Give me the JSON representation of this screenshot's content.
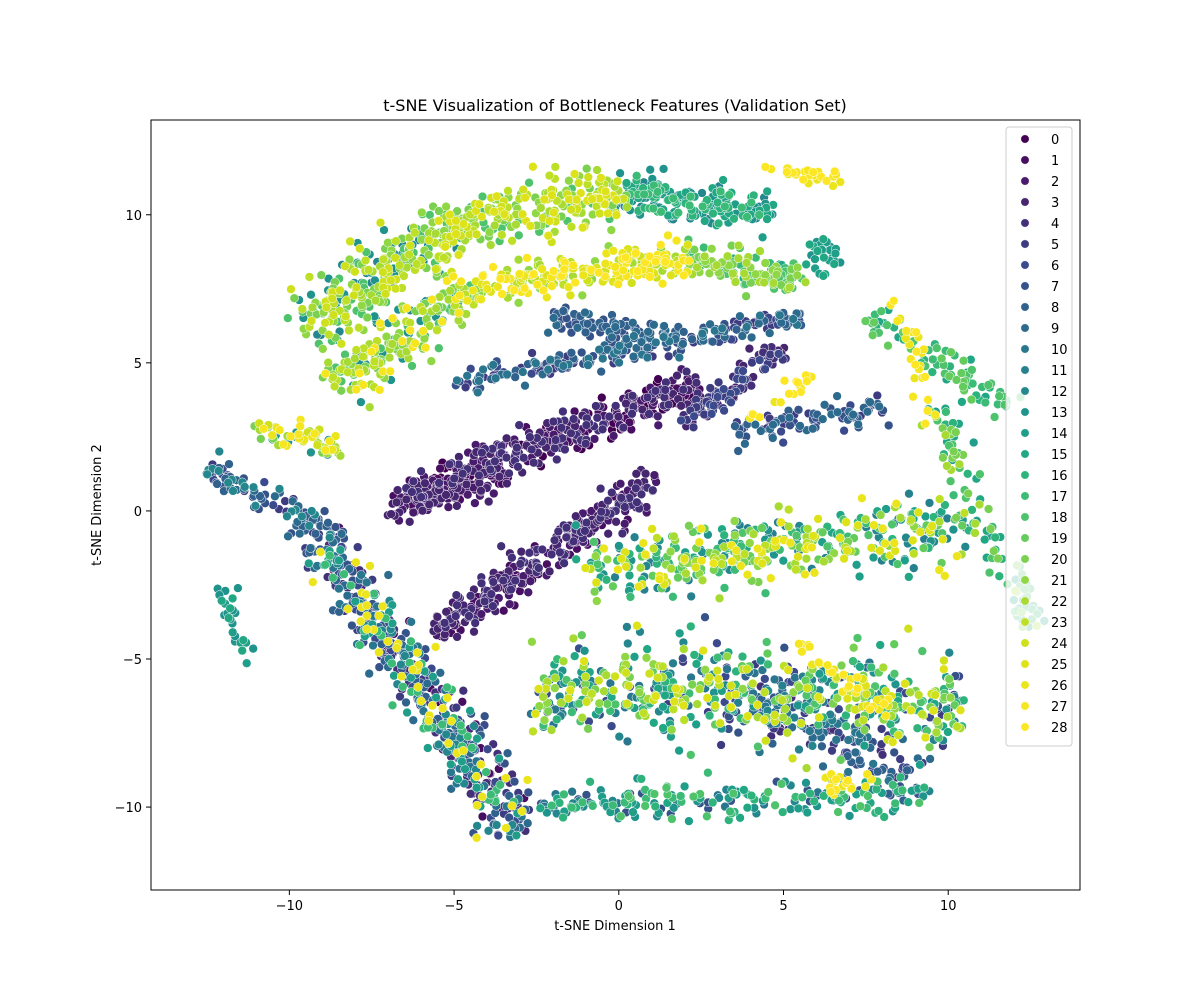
{
  "chart_data": {
    "type": "scatter",
    "title": "t-SNE Visualization of Bottleneck Features (Validation Set)",
    "xlabel": "t-SNE Dimension 1",
    "ylabel": "t-SNE Dimension 2",
    "xlim": [
      -14.2,
      14.0
    ],
    "ylim": [
      -12.8,
      13.2
    ],
    "xticks": [
      -10,
      -5,
      0,
      5,
      10
    ],
    "yticks": [
      -10,
      -5,
      0,
      5,
      10
    ],
    "xtick_labels": [
      "−10",
      "−5",
      "0",
      "5",
      "10"
    ],
    "ytick_labels": [
      "−10",
      "−5",
      "0",
      "5",
      "10"
    ],
    "grid": false,
    "legend_position": "top-right",
    "legend_labels": [
      "0",
      "1",
      "2",
      "3",
      "4",
      "5",
      "6",
      "7",
      "8",
      "9",
      "10",
      "11",
      "12",
      "13",
      "14",
      "15",
      "16",
      "17",
      "18",
      "19",
      "20",
      "21",
      "22",
      "23",
      "24",
      "25",
      "26",
      "27",
      "28"
    ],
    "palette": [
      "#440154",
      "#470e61",
      "#481b6d",
      "#46276f",
      "#433079",
      "#3e3c81",
      "#3a4a8c",
      "#355289",
      "#31618d",
      "#2d6b8e",
      "#2a768e",
      "#27808e",
      "#24878e",
      "#20938c",
      "#1f9e89",
      "#22a785",
      "#2eb37c",
      "#3bbb75",
      "#4ec36b",
      "#64cb5d",
      "#7ad151",
      "#8fd744",
      "#a7db33",
      "#bddf26",
      "#cfe11c",
      "#dde318",
      "#ece51b",
      "#f5e61f",
      "#fde725"
    ],
    "clusters": [
      {
        "region": "top-left arc",
        "cx": -3.5,
        "cy": 7.5,
        "classes": [
          18,
          20,
          21,
          22,
          23,
          24,
          25,
          27,
          12,
          13,
          10
        ]
      },
      {
        "region": "diagonal band",
        "cx": -1.0,
        "cy": 2.5,
        "classes": [
          0,
          1,
          2,
          3,
          4,
          5,
          6
        ]
      },
      {
        "region": "center oblique",
        "cx": -1.5,
        "cy": -2.0,
        "classes": [
          1,
          2,
          3
        ]
      },
      {
        "region": "left arm",
        "cx": -7.5,
        "cy": -5.0,
        "classes": [
          5,
          6,
          7,
          8,
          9,
          10,
          12,
          14,
          17,
          26
        ]
      },
      {
        "region": "right lobe",
        "cx": 5.5,
        "cy": -4.5,
        "classes": [
          10,
          11,
          12,
          13,
          14,
          15,
          16,
          17,
          18,
          19,
          20,
          21,
          22,
          23,
          24,
          25
        ]
      }
    ]
  }
}
